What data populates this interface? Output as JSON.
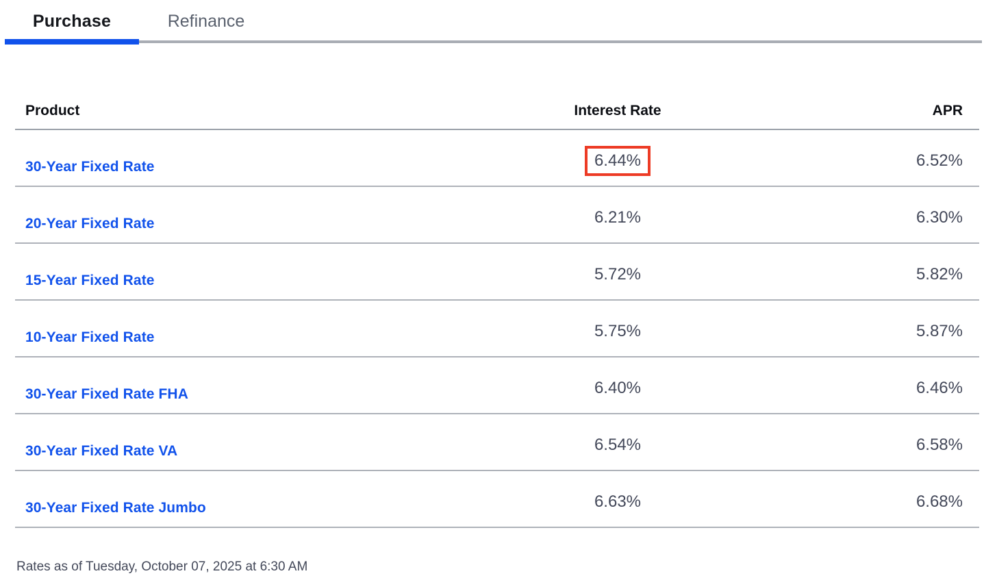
{
  "tabs": [
    {
      "label": "Purchase",
      "active": true
    },
    {
      "label": "Refinance",
      "active": false
    }
  ],
  "table": {
    "columns": [
      "Product",
      "Interest Rate",
      "APR"
    ],
    "rows": [
      {
        "product": "30-Year Fixed Rate",
        "interest_rate": "6.44%",
        "apr": "6.52%",
        "highlighted": true
      },
      {
        "product": "20-Year Fixed Rate",
        "interest_rate": "6.21%",
        "apr": "6.30%",
        "highlighted": false
      },
      {
        "product": "15-Year Fixed Rate",
        "interest_rate": "5.72%",
        "apr": "5.82%",
        "highlighted": false
      },
      {
        "product": "10-Year Fixed Rate",
        "interest_rate": "5.75%",
        "apr": "5.87%",
        "highlighted": false
      },
      {
        "product": "30-Year Fixed Rate FHA",
        "interest_rate": "6.40%",
        "apr": "6.46%",
        "highlighted": false
      },
      {
        "product": "30-Year Fixed Rate VA",
        "interest_rate": "6.54%",
        "apr": "6.58%",
        "highlighted": false
      },
      {
        "product": "30-Year Fixed Rate Jumbo",
        "interest_rate": "6.63%",
        "apr": "6.68%",
        "highlighted": false
      }
    ]
  },
  "footer": {
    "timestamp": "Rates as of Tuesday, October 07, 2025 at 6:30 AM"
  },
  "colors": {
    "link_blue": "#1152EB",
    "active_tab_indicator": "#1152EB",
    "inactive_tab_text": "#5A616E",
    "value_text": "#434859",
    "divider_gray": "#AEB2B9",
    "annotation_red": "#ED3B25"
  },
  "annotation": {
    "type": "red-highlight-box",
    "target_row": 0,
    "target_column": "Interest Rate",
    "boxed_value": "6.44%"
  }
}
